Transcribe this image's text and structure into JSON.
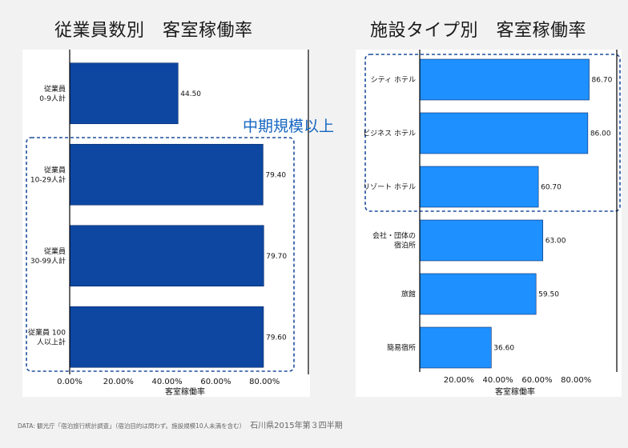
{
  "chart_data": [
    {
      "type": "bar",
      "orientation": "horizontal",
      "title": "従業員数別　客室稼働率",
      "xlabel": "客室稼働率",
      "ylabel": "",
      "xlim": [
        0,
        100
      ],
      "xticks": [
        "0.00%",
        "20.00%",
        "40.00%",
        "60.00%",
        "80.00%"
      ],
      "categories": [
        [
          "従業員",
          "0-9人計"
        ],
        [
          "従業員",
          "10-29人計"
        ],
        [
          "従業員",
          "30-99人計"
        ],
        [
          "従業員 100",
          "人以上計"
        ]
      ],
      "values": [
        44.5,
        79.4,
        79.7,
        79.6
      ],
      "value_labels": [
        "44.50",
        "79.40",
        "79.70",
        "79.60"
      ],
      "color": "#0d47a1",
      "highlight_group": [
        1,
        2,
        3
      ]
    },
    {
      "type": "bar",
      "orientation": "horizontal",
      "title": "施設タイプ別　客室稼働率",
      "xlabel": "客室稼働率",
      "ylabel": "",
      "xlim": [
        0,
        100
      ],
      "xticks": [
        "20.00%",
        "40.00%",
        "60.00%",
        "80.00%"
      ],
      "categories": [
        [
          "シティ ホテル"
        ],
        [
          "ビジネス ホテル"
        ],
        [
          "リゾート ホテル"
        ],
        [
          "会社・団体の",
          "宿泊所"
        ],
        [
          "旅館"
        ],
        [
          "簡易宿所"
        ]
      ],
      "values": [
        86.7,
        86.0,
        60.7,
        63.0,
        59.5,
        36.6
      ],
      "value_labels": [
        "86.70",
        "86.00",
        "60.70",
        "63.00",
        "59.50",
        "36.60"
      ],
      "color": "#1e90ff",
      "highlight_group": [
        0,
        1,
        2
      ]
    }
  ],
  "annotation": "中期規模以上",
  "footer": {
    "source": "DATA: 観光庁「宿泊旅行統計調査」（宿泊目的は問わず。施設規模10人未満を含む）",
    "period": "石川県2015年第３四半期"
  }
}
